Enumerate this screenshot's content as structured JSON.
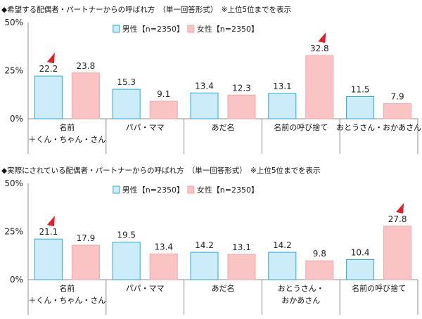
{
  "chart_data": [
    {
      "type": "bar",
      "title": "◆希望する配偶者・パートナーからの呼ばれ方　（単一回答形式）　※上位5位までを表示",
      "categories": [
        [
          "名前",
          "＋くん・ちゃん・さん"
        ],
        [
          "パパ・ママ"
        ],
        [
          "あだ名"
        ],
        [
          "名前の呼び捨て"
        ],
        [
          "おとうさん・おかあさん"
        ]
      ],
      "series": [
        {
          "name": "男性【n=2350】",
          "values": [
            22.2,
            15.3,
            13.4,
            13.1,
            11.5
          ],
          "color": "#ccecf9",
          "stroke": "#29a9d9"
        },
        {
          "name": "女性【n=2350】",
          "values": [
            23.8,
            9.1,
            12.3,
            32.8,
            7.9
          ],
          "color": "#fbc4c4",
          "stroke": "#f4a5a5"
        }
      ],
      "value_labels": {
        "male": [
          "22.2",
          "15.3",
          "13.4",
          "13.1",
          "11.5"
        ],
        "female": [
          "23.8",
          "9.1",
          "12.3",
          "32.8",
          "7.9"
        ]
      },
      "highlight_markers": [
        {
          "series": 0,
          "index": 0
        },
        {
          "series": 1,
          "index": 3
        }
      ],
      "yticks": [
        "0%",
        "25%",
        "50%"
      ],
      "ylim": [
        0,
        50
      ],
      "xlabel": "",
      "ylabel": "",
      "legend_position": "top-center"
    },
    {
      "type": "bar",
      "title": "◆実際にされている配偶者・パートナーからの呼ばれ方　（単一回答形式）　※上位5位までを表示",
      "categories": [
        [
          "名前",
          "＋くん・ちゃん・さん"
        ],
        [
          "パパ・ママ"
        ],
        [
          "あだ名"
        ],
        [
          "おとうさん・",
          "おかあさん"
        ],
        [
          "名前の呼び捨て"
        ]
      ],
      "series": [
        {
          "name": "男性【n=2350】",
          "values": [
            21.1,
            19.5,
            14.2,
            14.2,
            10.4
          ],
          "color": "#ccecf9",
          "stroke": "#29a9d9"
        },
        {
          "name": "女性【n=2350】",
          "values": [
            17.9,
            13.4,
            13.1,
            9.8,
            27.8
          ],
          "color": "#fbc4c4",
          "stroke": "#f4a5a5"
        }
      ],
      "value_labels": {
        "male": [
          "21.1",
          "19.5",
          "14.2",
          "14.2",
          "10.4"
        ],
        "female": [
          "17.9",
          "13.4",
          "13.1",
          "9.8",
          "27.8"
        ]
      },
      "highlight_markers": [
        {
          "series": 0,
          "index": 0
        },
        {
          "series": 1,
          "index": 4
        }
      ],
      "yticks": [
        "0%",
        "25%",
        "50%"
      ],
      "ylim": [
        0,
        50
      ],
      "xlabel": "",
      "ylabel": "",
      "legend_position": "top-center"
    }
  ],
  "colors": {
    "marker": "#e21f26",
    "axis": "#8c8c8c"
  }
}
